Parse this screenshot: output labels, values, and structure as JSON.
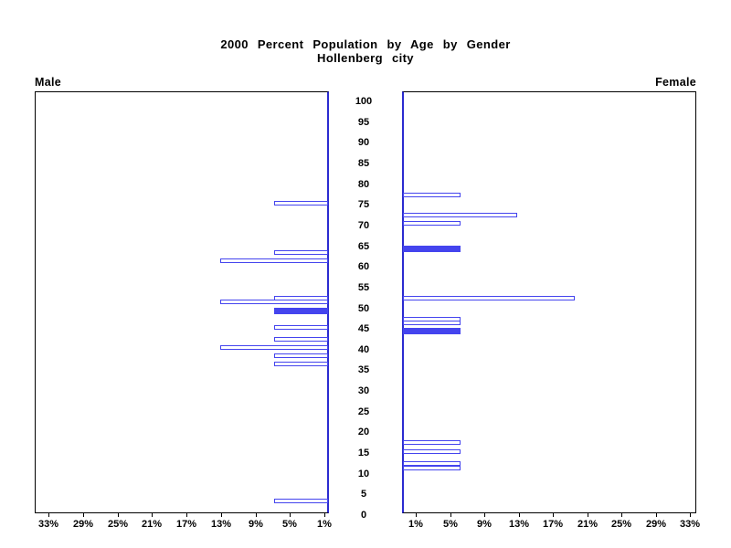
{
  "title": {
    "line1": "2000 Percent Population by Age by Gender",
    "line2": "Hollenberg city"
  },
  "panel_labels": {
    "left": "Male",
    "right": "Female"
  },
  "colors": {
    "bar_fill": "#4444ee",
    "bar_outline": "#4444ee",
    "axis_accent_blue": "#2b2bd0",
    "axis_black": "#000000",
    "background": "#ffffff"
  },
  "chart_data": {
    "type": "bar",
    "variant": "population-pyramid",
    "title": "2000 Percent Population by Age by Gender",
    "subtitle": "Hollenberg city",
    "grid": false,
    "legend": false,
    "age_axis": {
      "min": 0,
      "max": 100,
      "tick_step": 5,
      "tick_labels": [
        "0",
        "5",
        "10",
        "15",
        "20",
        "25",
        "30",
        "35",
        "40",
        "45",
        "50",
        "55",
        "60",
        "65",
        "70",
        "75",
        "80",
        "85",
        "90",
        "95",
        "100"
      ]
    },
    "pct_axis": {
      "unit": "%",
      "max_percent": 34,
      "tick_values": [
        1,
        5,
        9,
        13,
        17,
        21,
        25,
        29,
        33
      ],
      "tick_labels_left_to_right_male": [
        "33%",
        "29%",
        "25%",
        "21%",
        "17%",
        "13%",
        "9%",
        "5%",
        "1%"
      ],
      "tick_labels_left_to_right_female": [
        "1%",
        "5%",
        "9%",
        "13%",
        "17%",
        "21%",
        "25%",
        "29%",
        "33%"
      ]
    },
    "series": [
      {
        "name": "Male",
        "side": "left",
        "bars": [
          {
            "age": 75,
            "percent": 6.25,
            "filled": false
          },
          {
            "age": 63,
            "percent": 6.25,
            "filled": false
          },
          {
            "age": 61,
            "percent": 12.5,
            "filled": false
          },
          {
            "age": 52,
            "percent": 6.25,
            "filled": false
          },
          {
            "age": 51,
            "percent": 12.5,
            "filled": false
          },
          {
            "age": 49,
            "percent": 6.25,
            "filled": true
          },
          {
            "age": 45,
            "percent": 6.25,
            "filled": false
          },
          {
            "age": 42,
            "percent": 6.25,
            "filled": false
          },
          {
            "age": 40,
            "percent": 12.5,
            "filled": false
          },
          {
            "age": 38,
            "percent": 6.25,
            "filled": false
          },
          {
            "age": 36,
            "percent": 6.25,
            "filled": false
          },
          {
            "age": 3,
            "percent": 6.25,
            "filled": false
          }
        ]
      },
      {
        "name": "Female",
        "side": "right",
        "bars": [
          {
            "age": 77,
            "percent": 6.67,
            "filled": false
          },
          {
            "age": 72,
            "percent": 13.33,
            "filled": false
          },
          {
            "age": 70,
            "percent": 6.67,
            "filled": false
          },
          {
            "age": 64,
            "percent": 6.67,
            "filled": true
          },
          {
            "age": 52,
            "percent": 20.0,
            "filled": false
          },
          {
            "age": 47,
            "percent": 6.67,
            "filled": false
          },
          {
            "age": 46,
            "percent": 6.67,
            "filled": false
          },
          {
            "age": 44,
            "percent": 6.67,
            "filled": true
          },
          {
            "age": 17,
            "percent": 6.67,
            "filled": false
          },
          {
            "age": 15,
            "percent": 6.67,
            "filled": false
          },
          {
            "age": 12,
            "percent": 6.67,
            "filled": false
          },
          {
            "age": 11,
            "percent": 6.67,
            "filled": false
          }
        ]
      }
    ]
  }
}
